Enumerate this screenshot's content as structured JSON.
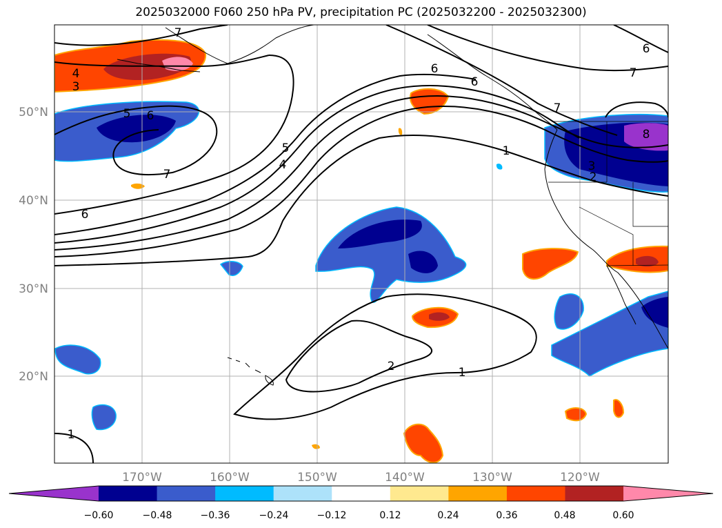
{
  "title": "2025032000 F060 250 hPa PV, precipitation PC (2025032200 - 2025032300)",
  "map": {
    "projection": "cylindrical",
    "lon_range": [
      -180,
      -110
    ],
    "lat_range": [
      10,
      60
    ],
    "lat_labels": [
      "50°N",
      "40°N",
      "30°N",
      "20°N"
    ],
    "lon_labels": [
      "170°W",
      "160°W",
      "150°W",
      "140°W",
      "130°W",
      "120°W"
    ],
    "pv_contour_labels": [
      "7",
      "6",
      "4",
      "3",
      "5",
      "6",
      "7",
      "6",
      "7",
      "6",
      "7",
      "5",
      "4",
      "1",
      "3",
      "2",
      "8",
      "6",
      "2",
      "1",
      "1"
    ]
  },
  "colorbar": {
    "tick_labels": [
      "−0.60",
      "−0.48",
      "−0.36",
      "−0.24",
      "−0.12",
      "0.12",
      "0.24",
      "0.36",
      "0.48",
      "0.60"
    ],
    "colors": [
      "#9933cc",
      "#000090",
      "#3a5ccc",
      "#00bbff",
      "#ade2fa",
      "#ffffff",
      "#ffe98f",
      "#ffa500",
      "#ff4500",
      "#b22222",
      "#ff88aa"
    ]
  }
}
